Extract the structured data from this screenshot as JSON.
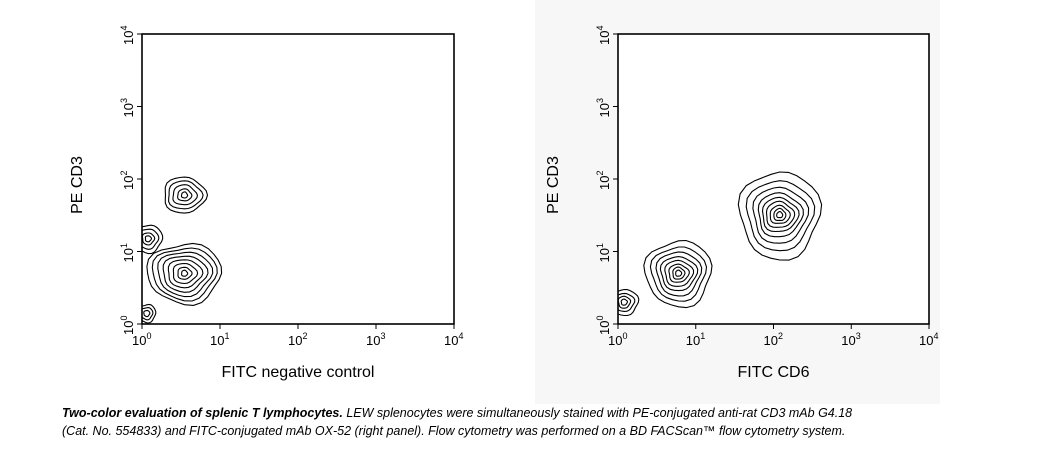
{
  "chart_data": [
    {
      "type": "contour",
      "xlabel": "FITC negative control",
      "ylabel": "PE CD3",
      "x_scale": "log",
      "y_scale": "log",
      "xlim": [
        1,
        10000
      ],
      "ylim": [
        1,
        10000
      ],
      "x_ticks": [
        "10^0",
        "10^1",
        "10^2",
        "10^3",
        "10^4"
      ],
      "y_ticks": [
        "10^0",
        "10^1",
        "10^2",
        "10^3",
        "10^4"
      ],
      "populations": [
        {
          "x": 3.5,
          "y": 60,
          "levels": 5
        },
        {
          "x": 3.5,
          "y": 5,
          "levels": 8
        },
        {
          "x": 1.2,
          "y": 15,
          "levels": 4
        },
        {
          "x": 1.15,
          "y": 1.4,
          "levels": 3
        }
      ]
    },
    {
      "type": "contour",
      "xlabel": "FITC CD6",
      "ylabel": "PE CD3",
      "x_scale": "log",
      "y_scale": "log",
      "xlim": [
        1,
        10000
      ],
      "ylim": [
        1,
        10000
      ],
      "x_ticks": [
        "10^0",
        "10^1",
        "10^2",
        "10^3",
        "10^4"
      ],
      "y_ticks": [
        "10^0",
        "10^1",
        "10^2",
        "10^3",
        "10^4"
      ],
      "populations": [
        {
          "x": 120,
          "y": 32,
          "levels": 9
        },
        {
          "x": 6,
          "y": 5,
          "levels": 8
        },
        {
          "x": 1.2,
          "y": 2,
          "levels": 4
        }
      ]
    }
  ],
  "caption": {
    "bold": "Two-color evaluation of splenic T lymphocytes.",
    "text": " LEW splenocytes were simultaneously stained with PE-conjugated anti-rat CD3 mAb G4.18 (Cat. No. 554833) and FITC-conjugated mAb OX-52 (right panel). Flow cytometry was performed on a BD FACScan™ flow cytometry system."
  }
}
